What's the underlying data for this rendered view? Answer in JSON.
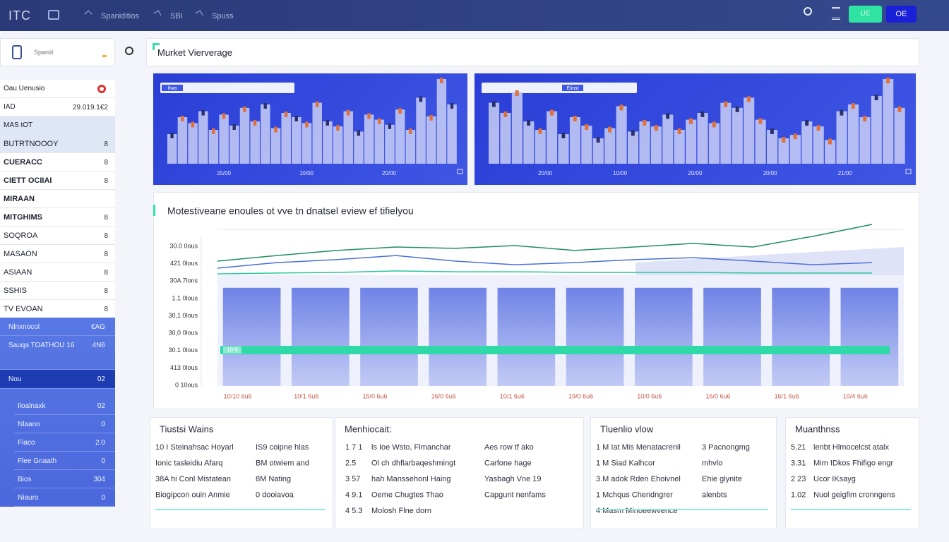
{
  "topbar": {
    "logo": "ITC",
    "nav": [
      "Spaniditios",
      "SBI",
      "Spuss"
    ],
    "buttons": [
      "UE",
      "OE"
    ]
  },
  "sidebar": {
    "search": "Spaniit",
    "rows": [
      {
        "label": "Oau Uenusio"
      },
      {
        "label": "IAD",
        "value": "29.019.1€2"
      },
      {
        "label": "MAS tOT"
      },
      {
        "label": "BUTRTNOOOY",
        "value": "8"
      },
      {
        "label": "CUERACC",
        "value": "8"
      },
      {
        "label": "CIETT OCIIAI",
        "value": "8"
      },
      {
        "label": "MIRAAN"
      },
      {
        "label": "MITGHIMS",
        "value": "8"
      },
      {
        "label": "SOQROA",
        "value": "8"
      },
      {
        "label": "MASAON",
        "value": "8"
      },
      {
        "label": "ASIAAN",
        "value": "8"
      },
      {
        "label": "SSHIS",
        "value": "8"
      },
      {
        "label": "TV EVOAN",
        "value": "8"
      }
    ],
    "blue_rows": [
      {
        "label": "Nlnxnocol",
        "value": "€AG"
      },
      {
        "label": "Sauqa  TOATHOU 16",
        "value": "4N6"
      },
      {
        "label": "Nou",
        "value": "02"
      },
      {
        "label": "Iloalnaxk",
        "value": "02"
      },
      {
        "label": "Nlaano",
        "value": "0"
      },
      {
        "label": "Fiaco",
        "value": "2.0"
      },
      {
        "label": "Flee Gnaath",
        "value": "0"
      },
      {
        "label": "Bios",
        "value": "304"
      },
      {
        "label": "Niauro",
        "value": "0"
      }
    ]
  },
  "main": {
    "title": "Murket Vierverage"
  },
  "mini_charts": [
    {
      "tag": "Ilwa",
      "x_labels": [
        "20/00",
        "10/00",
        "20/00"
      ],
      "ylim": [
        0,
        100
      ],
      "values": [
        35,
        55,
        48,
        62,
        40,
        58,
        45,
        66,
        50,
        70,
        42,
        60,
        55,
        48,
        72,
        50,
        44,
        62,
        38,
        58,
        52,
        46,
        64,
        40,
        78,
        56,
        100,
        70
      ]
    },
    {
      "tag": "Eiinst",
      "x_labels": [
        "20/00",
        "10/00",
        "20/00",
        "20/00",
        "21/00"
      ],
      "ylim": [
        0,
        100
      ],
      "values": [
        72,
        60,
        85,
        50,
        40,
        62,
        35,
        55,
        45,
        30,
        42,
        68,
        38,
        50,
        44,
        58,
        40,
        52,
        60,
        48,
        72,
        66,
        78,
        52,
        40,
        30,
        34,
        50,
        44,
        28,
        62,
        70,
        55,
        80,
        100,
        66
      ]
    }
  ],
  "main_chart": {
    "type": "line",
    "title": "Motestiveane enoules ot vve tn dnatsel eview ef tifielyou",
    "y_labels": [
      "30.0 0ous",
      "421 0lous",
      "30A 7lons",
      "1.1 0lous",
      "30,1 0lous",
      "30,0 0lous",
      "30.1 0lous",
      "413 0lous",
      "0 10ous"
    ],
    "x_labels": [
      "10/10 6u6",
      "10/1 6u6",
      "15/0 6u6",
      "16/0 6u6",
      "10/1 6u6",
      "19/0 6u6",
      "10/0 6u6",
      "16/0 6u6",
      "16/1 6u6",
      "10/4 6u6"
    ],
    "ylim": [
      0,
      100
    ],
    "series": [
      {
        "color": "#1e8f5e",
        "values": [
          76.3,
          79.7,
          82.8,
          84.9,
          84.1,
          85.8,
          82.8,
          84.9,
          87.1,
          84.9,
          91.4,
          98.7
        ]
      },
      {
        "color": "#27c79a",
        "values": [
          68.5,
          69,
          69.4,
          70.3,
          69.8,
          69.8,
          69.4,
          69.4,
          69.4,
          69,
          69,
          69
        ]
      },
      {
        "color": "#4b6fd8",
        "values": [
          72,
          75.4,
          77.2,
          79.7,
          76.3,
          74.1,
          75.4,
          77.2,
          78.4,
          76.3,
          74.1,
          75.4
        ]
      }
    ],
    "bars": [
      60,
      60,
      60,
      60,
      60,
      60,
      60,
      60,
      60,
      60
    ],
    "target": 22,
    "target_label": "10 0"
  },
  "cards": [
    {
      "title": "Tiustsi Wains",
      "rows": [
        [
          "10 I Steinahsac Hoyarl",
          "IS9  coipne hlas"
        ],
        [
          "Ionic tasleidiu Afarq",
          "BM  otwiem and"
        ],
        [
          "38A hi Conl Mistatean",
          "8M  Nating"
        ],
        [
          "Biogipcon ouin Anmie",
          "0  dooiavoa"
        ]
      ]
    },
    {
      "title": "Menhiocait:",
      "rows": [
        [
          "1 7 1",
          "ls Ioe Wsto, Flmanchar",
          "Aes row tf ako"
        ],
        [
          "2.5",
          "Ol ch dhflarbaqeshmingt",
          "Carfone hage"
        ],
        [
          "3 57",
          "hah Manssehonl Haing",
          "Yasbagh Vne 19"
        ],
        [
          "4 9.1",
          "Oeme Chugtes Thao",
          "Capgunt nenfams"
        ],
        [
          "4 5.3",
          "Molosh Flne dorn"
        ]
      ]
    },
    {
      "title": "Tluenlio vlow",
      "rows": [
        [
          "1 M Iat Mis Menatacrenil",
          "3  Pacnongmg"
        ],
        [
          "1 M Siad Kalhcor",
          "mhvlo"
        ],
        [
          "3.M adok Rden Ehoivnel",
          "Ehie glynite"
        ],
        [
          "1 Mchqus Chendngrer",
          "alenbts"
        ],
        [
          "4 Masm Minoeewvence"
        ]
      ]
    },
    {
      "title": "Muanthnss",
      "rows": [
        [
          "5.21",
          "lenbt Hlmocelcst atalx"
        ],
        [
          "3.31",
          "Mim IDkos Fhifigo engr"
        ],
        [
          "2 23",
          "Ucor IKsayg"
        ],
        [
          "1.02",
          "Nuol geigfim cronngens"
        ]
      ]
    }
  ]
}
